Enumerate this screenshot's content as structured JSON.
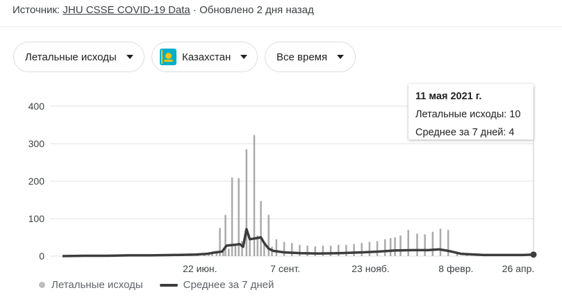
{
  "header": {
    "source_prefix": "Источник: ",
    "source_link": "JHU CSSE COVID-19 Data",
    "updated": " · Обновлено 2 дня назад"
  },
  "filters": {
    "metric": "Летальные исходы",
    "country": "Казахстан",
    "period": "Все время"
  },
  "tooltip": {
    "date": "11 мая 2021 г.",
    "deaths": "Летальные исходы: 10",
    "average": "Среднее за 7 дней: 4"
  },
  "legend": {
    "daily": "Летальные исходы",
    "average": "Среднее за 7 дней"
  },
  "colors": {
    "daily": "#aaaaaa",
    "average": "#3c3c3c",
    "grid": "#e0e0e0"
  },
  "chart_data": {
    "type": "line",
    "ylim": [
      0,
      400
    ],
    "yticks": [
      0,
      100,
      200,
      300,
      400
    ],
    "xlim": [
      0,
      425
    ],
    "xticks": [
      {
        "x": 124,
        "label": "22 июн."
      },
      {
        "x": 201,
        "label": "7 сент."
      },
      {
        "x": 278,
        "label": "23 нояб."
      },
      {
        "x": 355,
        "label": "8 февр."
      },
      {
        "x": 432,
        "label": "26 апр."
      }
    ],
    "daily_spikes": [
      {
        "x": 85,
        "y": 3
      },
      {
        "x": 92,
        "y": 2
      },
      {
        "x": 100,
        "y": 2
      },
      {
        "x": 108,
        "y": 3
      },
      {
        "x": 115,
        "y": 4
      },
      {
        "x": 122,
        "y": 5
      },
      {
        "x": 128,
        "y": 6
      },
      {
        "x": 132,
        "y": 8
      },
      {
        "x": 135,
        "y": 10
      },
      {
        "x": 139,
        "y": 12
      },
      {
        "x": 142,
        "y": 75
      },
      {
        "x": 145,
        "y": 14
      },
      {
        "x": 147,
        "y": 110
      },
      {
        "x": 150,
        "y": 20
      },
      {
        "x": 153,
        "y": 210
      },
      {
        "x": 156,
        "y": 30
      },
      {
        "x": 159,
        "y": 208
      },
      {
        "x": 162,
        "y": 40
      },
      {
        "x": 166,
        "y": 285
      },
      {
        "x": 169,
        "y": 45
      },
      {
        "x": 173,
        "y": 323
      },
      {
        "x": 176,
        "y": 55
      },
      {
        "x": 179,
        "y": 147
      },
      {
        "x": 182,
        "y": 35
      },
      {
        "x": 186,
        "y": 110
      },
      {
        "x": 189,
        "y": 25
      },
      {
        "x": 193,
        "y": 45
      },
      {
        "x": 200,
        "y": 38
      },
      {
        "x": 207,
        "y": 35
      },
      {
        "x": 214,
        "y": 30
      },
      {
        "x": 221,
        "y": 28
      },
      {
        "x": 228,
        "y": 26
      },
      {
        "x": 235,
        "y": 28
      },
      {
        "x": 242,
        "y": 28
      },
      {
        "x": 249,
        "y": 30
      },
      {
        "x": 256,
        "y": 30
      },
      {
        "x": 263,
        "y": 32
      },
      {
        "x": 270,
        "y": 35
      },
      {
        "x": 277,
        "y": 38
      },
      {
        "x": 284,
        "y": 40
      },
      {
        "x": 291,
        "y": 45
      },
      {
        "x": 296,
        "y": 48
      },
      {
        "x": 300,
        "y": 50
      },
      {
        "x": 305,
        "y": 55
      },
      {
        "x": 312,
        "y": 70
      },
      {
        "x": 320,
        "y": 60
      },
      {
        "x": 327,
        "y": 58
      },
      {
        "x": 334,
        "y": 65
      },
      {
        "x": 341,
        "y": 73
      },
      {
        "x": 348,
        "y": 70
      },
      {
        "x": 356,
        "y": 10
      },
      {
        "x": 365,
        "y": 6
      },
      {
        "x": 380,
        "y": 4
      },
      {
        "x": 395,
        "y": 5
      },
      {
        "x": 410,
        "y": 6
      },
      {
        "x": 425,
        "y": 10
      }
    ],
    "average_line": [
      {
        "x": 0,
        "y": 0
      },
      {
        "x": 20,
        "y": 1
      },
      {
        "x": 40,
        "y": 1
      },
      {
        "x": 60,
        "y": 2
      },
      {
        "x": 80,
        "y": 2
      },
      {
        "x": 100,
        "y": 3
      },
      {
        "x": 120,
        "y": 4
      },
      {
        "x": 130,
        "y": 6
      },
      {
        "x": 138,
        "y": 10
      },
      {
        "x": 144,
        "y": 12
      },
      {
        "x": 148,
        "y": 28
      },
      {
        "x": 155,
        "y": 30
      },
      {
        "x": 160,
        "y": 32
      },
      {
        "x": 163,
        "y": 25
      },
      {
        "x": 166,
        "y": 72
      },
      {
        "x": 169,
        "y": 45
      },
      {
        "x": 175,
        "y": 48
      },
      {
        "x": 179,
        "y": 50
      },
      {
        "x": 182,
        "y": 35
      },
      {
        "x": 186,
        "y": 20
      },
      {
        "x": 190,
        "y": 14
      },
      {
        "x": 195,
        "y": 12
      },
      {
        "x": 200,
        "y": 10
      },
      {
        "x": 215,
        "y": 8
      },
      {
        "x": 230,
        "y": 7
      },
      {
        "x": 250,
        "y": 8
      },
      {
        "x": 270,
        "y": 10
      },
      {
        "x": 285,
        "y": 12
      },
      {
        "x": 300,
        "y": 15
      },
      {
        "x": 315,
        "y": 16
      },
      {
        "x": 330,
        "y": 16
      },
      {
        "x": 340,
        "y": 18
      },
      {
        "x": 348,
        "y": 14
      },
      {
        "x": 354,
        "y": 10
      },
      {
        "x": 360,
        "y": 6
      },
      {
        "x": 380,
        "y": 3
      },
      {
        "x": 400,
        "y": 3
      },
      {
        "x": 415,
        "y": 3
      },
      {
        "x": 425,
        "y": 4
      }
    ]
  }
}
